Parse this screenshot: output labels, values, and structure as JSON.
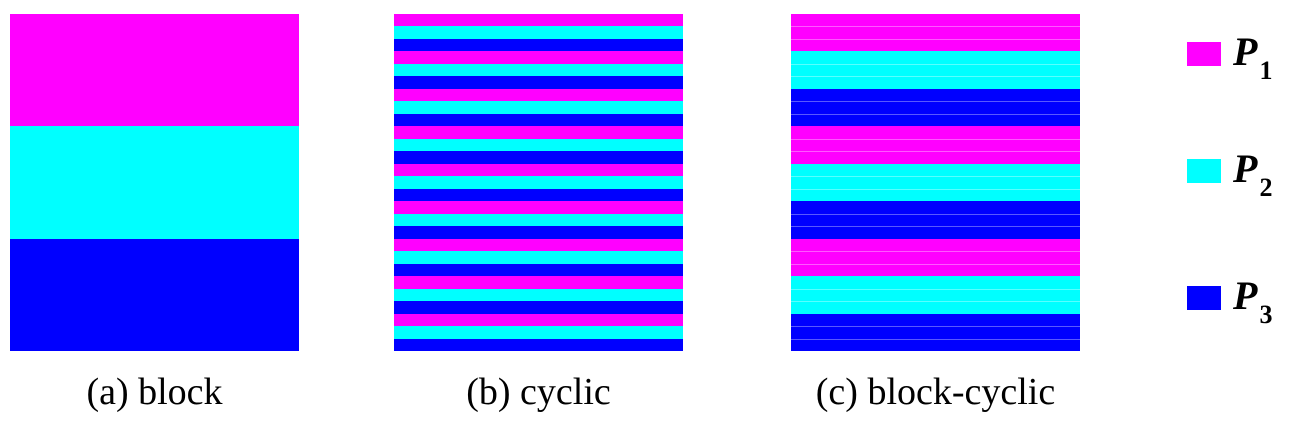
{
  "colors": {
    "P1": "#ff00ff",
    "P2": "#00ffff",
    "P3": "#0000ff"
  },
  "panels": [
    {
      "id": "block",
      "caption": "(a) block",
      "rows": [
        "P1",
        "P2",
        "P3"
      ]
    },
    {
      "id": "cyclic",
      "caption": "(b) cyclic",
      "rows": [
        "P1",
        "P2",
        "P3",
        "P1",
        "P2",
        "P3",
        "P1",
        "P2",
        "P3",
        "P1",
        "P2",
        "P3",
        "P1",
        "P2",
        "P3",
        "P1",
        "P2",
        "P3",
        "P1",
        "P2",
        "P3",
        "P1",
        "P2",
        "P3",
        "P1",
        "P2",
        "P3"
      ]
    },
    {
      "id": "blockcyclic",
      "caption": "(c) block-cyclic",
      "rows": [
        "P1",
        "P1",
        "P1",
        "P2",
        "P2",
        "P2",
        "P3",
        "P3",
        "P3",
        "P1",
        "P1",
        "P1",
        "P2",
        "P2",
        "P2",
        "P3",
        "P3",
        "P3",
        "P1",
        "P1",
        "P1",
        "P2",
        "P2",
        "P2",
        "P3",
        "P3",
        "P3"
      ]
    }
  ],
  "legend": [
    {
      "key": "P1",
      "symbol": "P",
      "subscript": "1"
    },
    {
      "key": "P2",
      "symbol": "P",
      "subscript": "2"
    },
    {
      "key": "P3",
      "symbol": "P",
      "subscript": "3"
    }
  ]
}
